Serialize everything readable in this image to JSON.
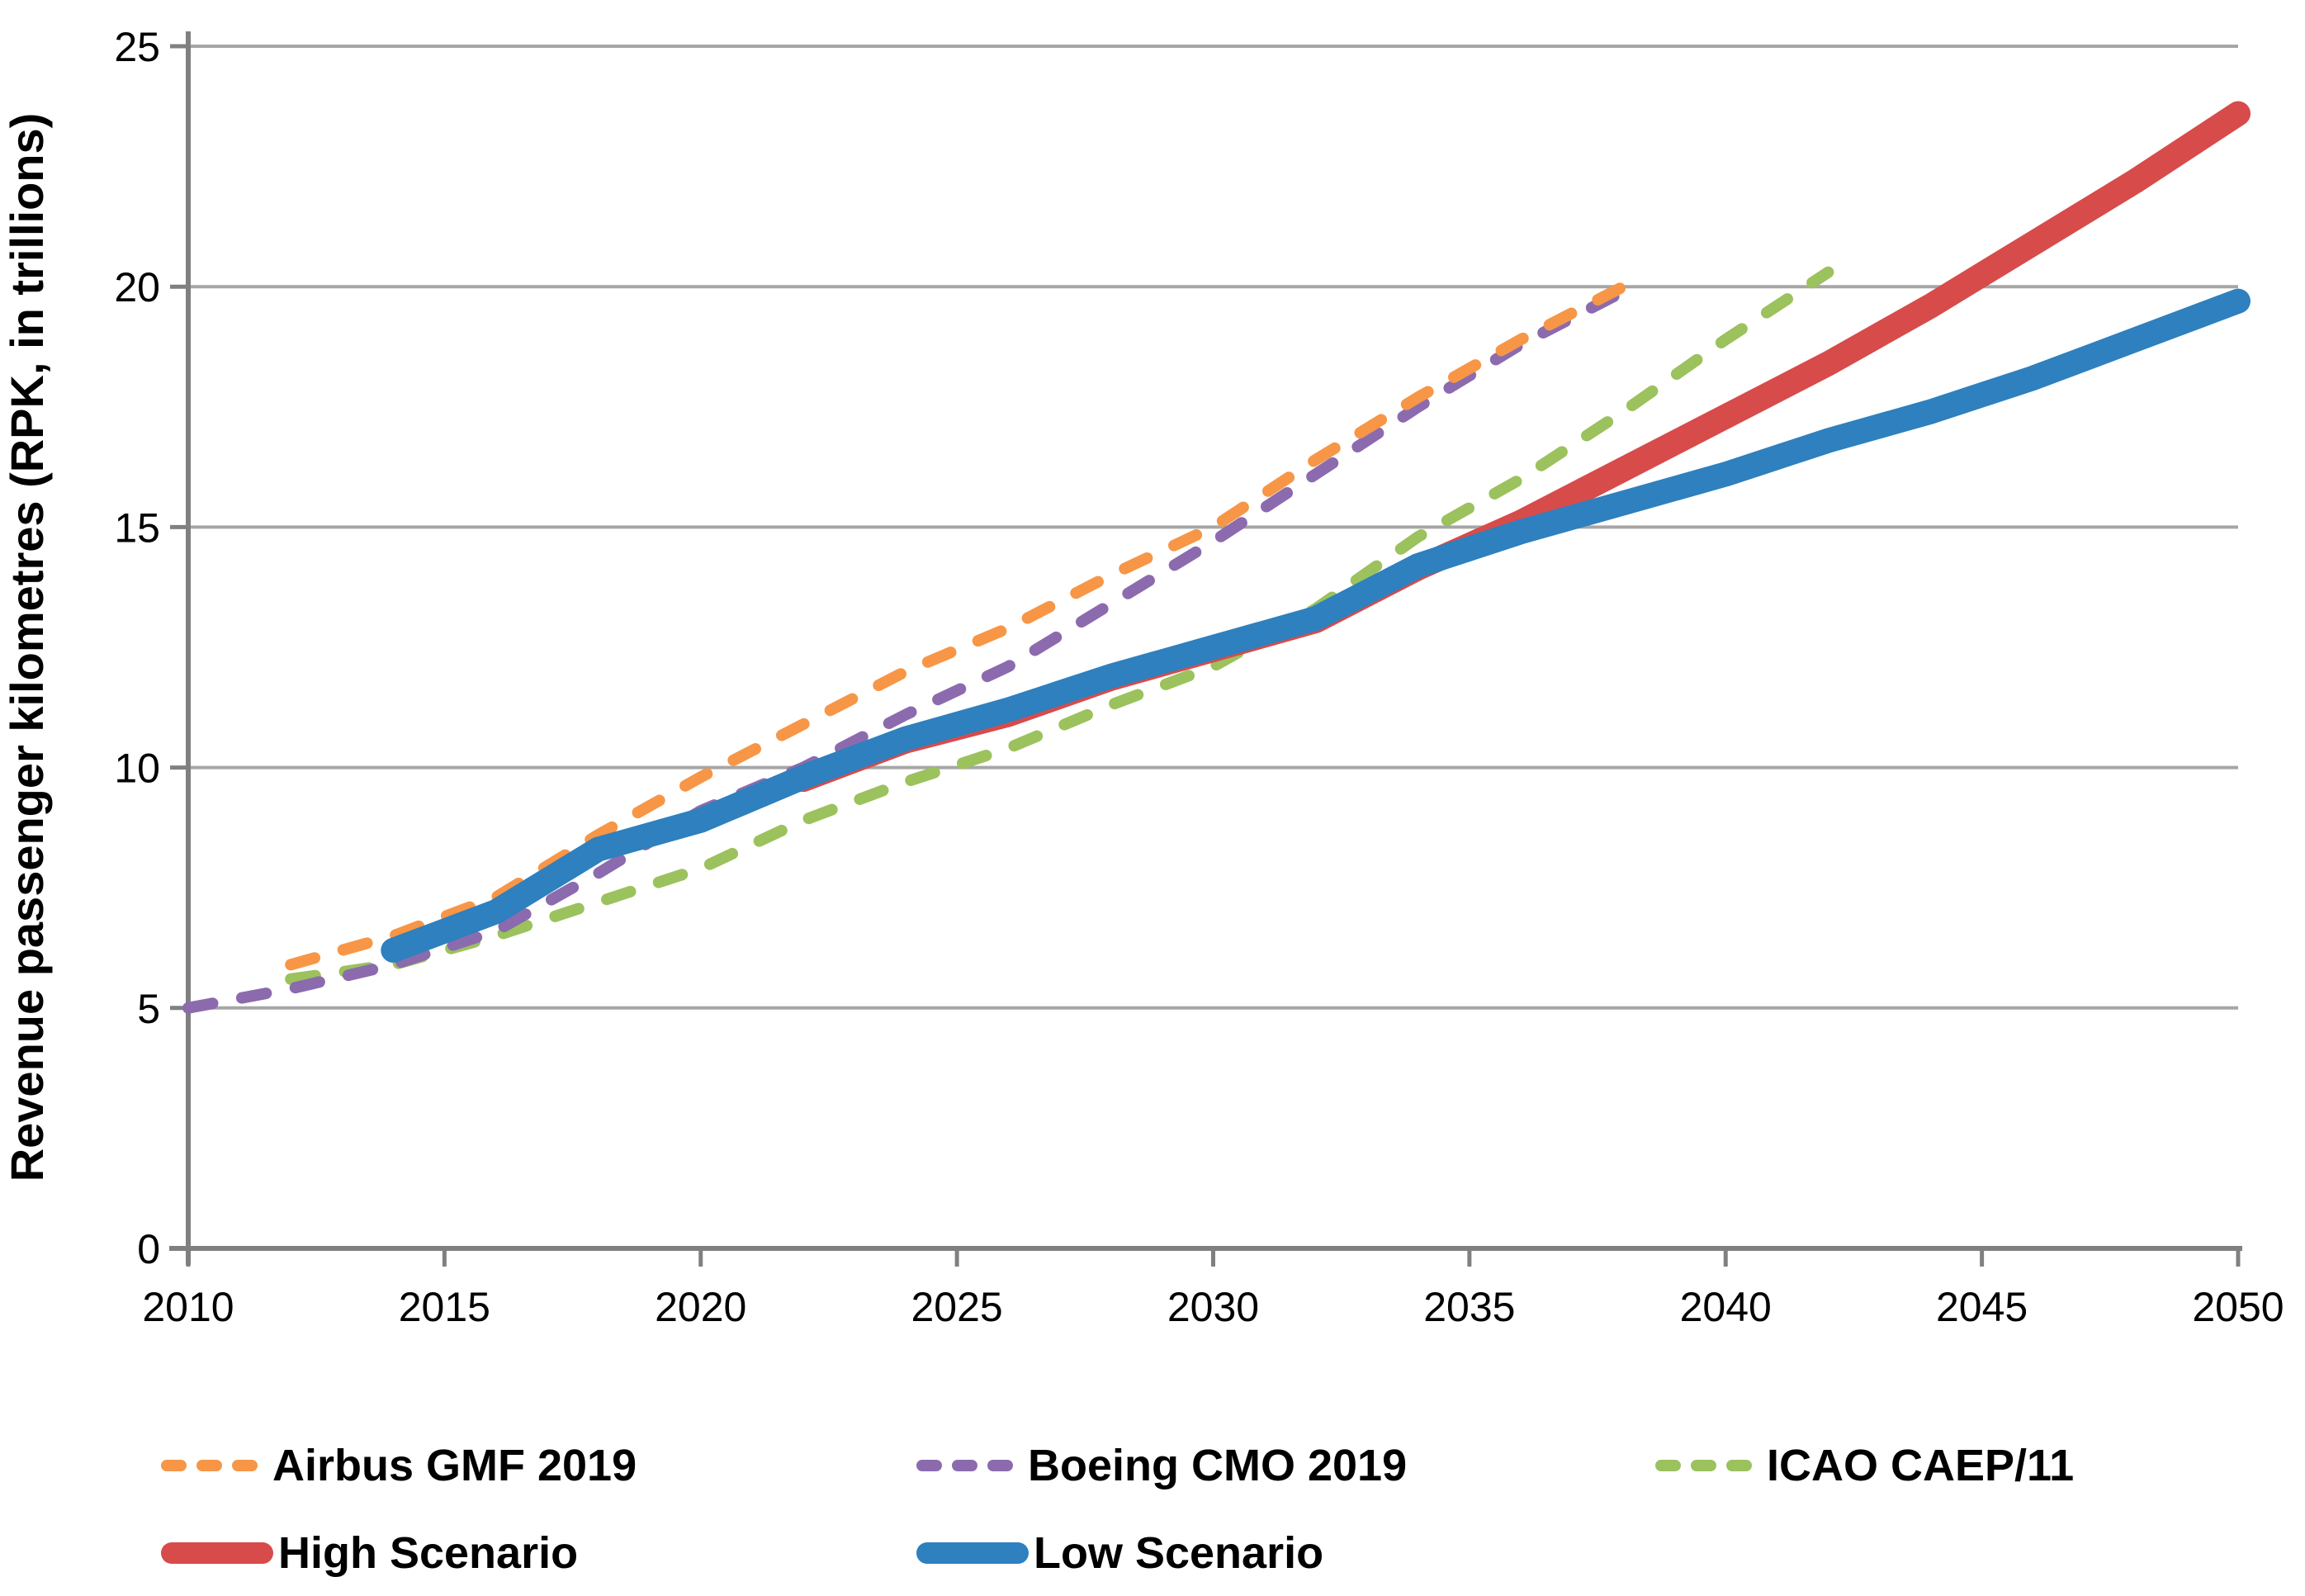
{
  "figure": {
    "background": "#ffffff",
    "axis_color": "#808080",
    "grid_color": "#a6a6a6",
    "tick_text_color": "#000000"
  },
  "chart_data": {
    "type": "line",
    "title": "",
    "xlabel": "",
    "ylabel": "Revenue passenger kilometres (RPK, in trillions)",
    "xlim": [
      2010,
      2050
    ],
    "ylim": [
      0,
      25
    ],
    "x_tick_labels": [
      "2010",
      "2015",
      "2020",
      "2025",
      "2030",
      "2035",
      "2040",
      "2045",
      "2050"
    ],
    "y_tick_labels": [
      "0",
      "5",
      "10",
      "15",
      "20",
      "25"
    ],
    "grid": "horizontal",
    "legend_position": "bottom",
    "series": [
      {
        "name": "ICAO CAEP/11",
        "color": "#9BC25D",
        "style": "dashed",
        "points": [
          [
            2012,
            5.6
          ],
          [
            2014,
            5.9
          ],
          [
            2016,
            6.5
          ],
          [
            2018,
            7.2
          ],
          [
            2020,
            7.9
          ],
          [
            2022,
            8.9
          ],
          [
            2024,
            9.7
          ],
          [
            2026,
            10.4
          ],
          [
            2028,
            11.3
          ],
          [
            2030,
            12.1
          ],
          [
            2032,
            13.3
          ],
          [
            2034,
            14.8
          ],
          [
            2036,
            16.0
          ],
          [
            2038,
            17.4
          ],
          [
            2040,
            18.9
          ],
          [
            2042,
            20.3
          ]
        ]
      },
      {
        "name": "Boeing CMO 2019",
        "color": "#8B6BAE",
        "style": "dashed",
        "points": [
          [
            2010,
            5.0
          ],
          [
            2012,
            5.4
          ],
          [
            2014,
            5.9
          ],
          [
            2016,
            6.6
          ],
          [
            2018,
            7.8
          ],
          [
            2020,
            9.1
          ],
          [
            2022,
            10.0
          ],
          [
            2024,
            11.1
          ],
          [
            2026,
            12.1
          ],
          [
            2028,
            13.4
          ],
          [
            2030,
            14.7
          ],
          [
            2032,
            16.1
          ],
          [
            2034,
            17.5
          ],
          [
            2036,
            18.8
          ],
          [
            2038,
            19.9
          ]
        ]
      },
      {
        "name": "Airbus GMF 2019",
        "color": "#F79646",
        "style": "dashed",
        "points": [
          [
            2012,
            5.9
          ],
          [
            2014,
            6.5
          ],
          [
            2016,
            7.3
          ],
          [
            2018,
            8.6
          ],
          [
            2020,
            9.8
          ],
          [
            2022,
            10.9
          ],
          [
            2024,
            12.0
          ],
          [
            2026,
            12.9
          ],
          [
            2028,
            14.0
          ],
          [
            2030,
            15.0
          ],
          [
            2032,
            16.4
          ],
          [
            2034,
            17.7
          ],
          [
            2036,
            18.9
          ],
          [
            2038,
            20.0
          ]
        ]
      },
      {
        "name": "High Scenario",
        "color": "#D74B4B",
        "style": "solid",
        "points": [
          [
            2022,
            9.75
          ],
          [
            2024,
            10.55
          ],
          [
            2026,
            11.1
          ],
          [
            2028,
            11.85
          ],
          [
            2030,
            12.45
          ],
          [
            2032,
            13.05
          ],
          [
            2034,
            14.15
          ],
          [
            2036,
            15.1
          ],
          [
            2038,
            16.2
          ],
          [
            2040,
            17.3
          ],
          [
            2042,
            18.4
          ],
          [
            2044,
            19.6
          ],
          [
            2046,
            20.9
          ],
          [
            2048,
            22.2
          ],
          [
            2050,
            23.6
          ]
        ]
      },
      {
        "name": "Low Scenario",
        "color": "#2E80BE",
        "style": "solid",
        "points": [
          [
            2014,
            6.2
          ],
          [
            2016,
            7.0
          ],
          [
            2018,
            8.3
          ],
          [
            2020,
            8.9
          ],
          [
            2022,
            9.8
          ],
          [
            2024,
            10.6
          ],
          [
            2026,
            11.2
          ],
          [
            2028,
            11.9
          ],
          [
            2030,
            12.5
          ],
          [
            2032,
            13.1
          ],
          [
            2034,
            14.2
          ],
          [
            2036,
            14.9
          ],
          [
            2038,
            15.5
          ],
          [
            2040,
            16.1
          ],
          [
            2042,
            16.8
          ],
          [
            2044,
            17.4
          ],
          [
            2046,
            18.1
          ],
          [
            2048,
            18.9
          ],
          [
            2050,
            19.7
          ]
        ]
      }
    ]
  },
  "legend": {
    "rows": [
      [
        "Airbus GMF 2019",
        "Boeing CMO 2019",
        "ICAO CAEP/11"
      ],
      [
        "High Scenario",
        "Low Scenario"
      ]
    ]
  }
}
